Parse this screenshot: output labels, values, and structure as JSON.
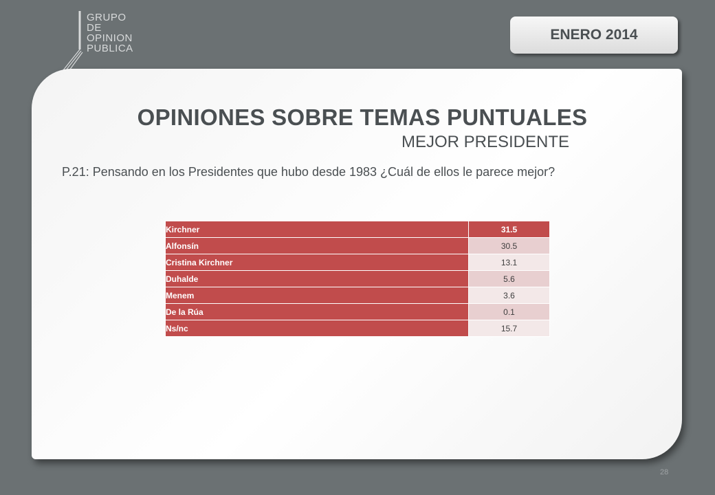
{
  "logo": {
    "lines": [
      "GRUPO",
      "DE",
      "OPINION",
      "PUBLICA"
    ]
  },
  "date_label": "ENERO 2014",
  "title": "OPINIONES SOBRE TEMAS PUNTUALES",
  "subtitle": "MEJOR PRESIDENTE",
  "question": "P.21: Pensando en los Presidentes que hubo desde 1983 ¿Cuál de ellos le parece mejor?",
  "table": {
    "rows": [
      {
        "label": "Kirchner",
        "value": "31.5"
      },
      {
        "label": "Alfonsín",
        "value": "30.5"
      },
      {
        "label": "Cristina Kirchner",
        "value": "13.1"
      },
      {
        "label": "Duhalde",
        "value": "5.6"
      },
      {
        "label": "Menem",
        "value": "3.6"
      },
      {
        "label": "De la Rúa",
        "value": "0.1"
      },
      {
        "label": "Ns/nc",
        "value": "15.7"
      }
    ]
  },
  "page_number": "28",
  "colors": {
    "background": "#6b7173",
    "accent_red": "#c14c4c",
    "text_dark": "#4a4f52"
  }
}
